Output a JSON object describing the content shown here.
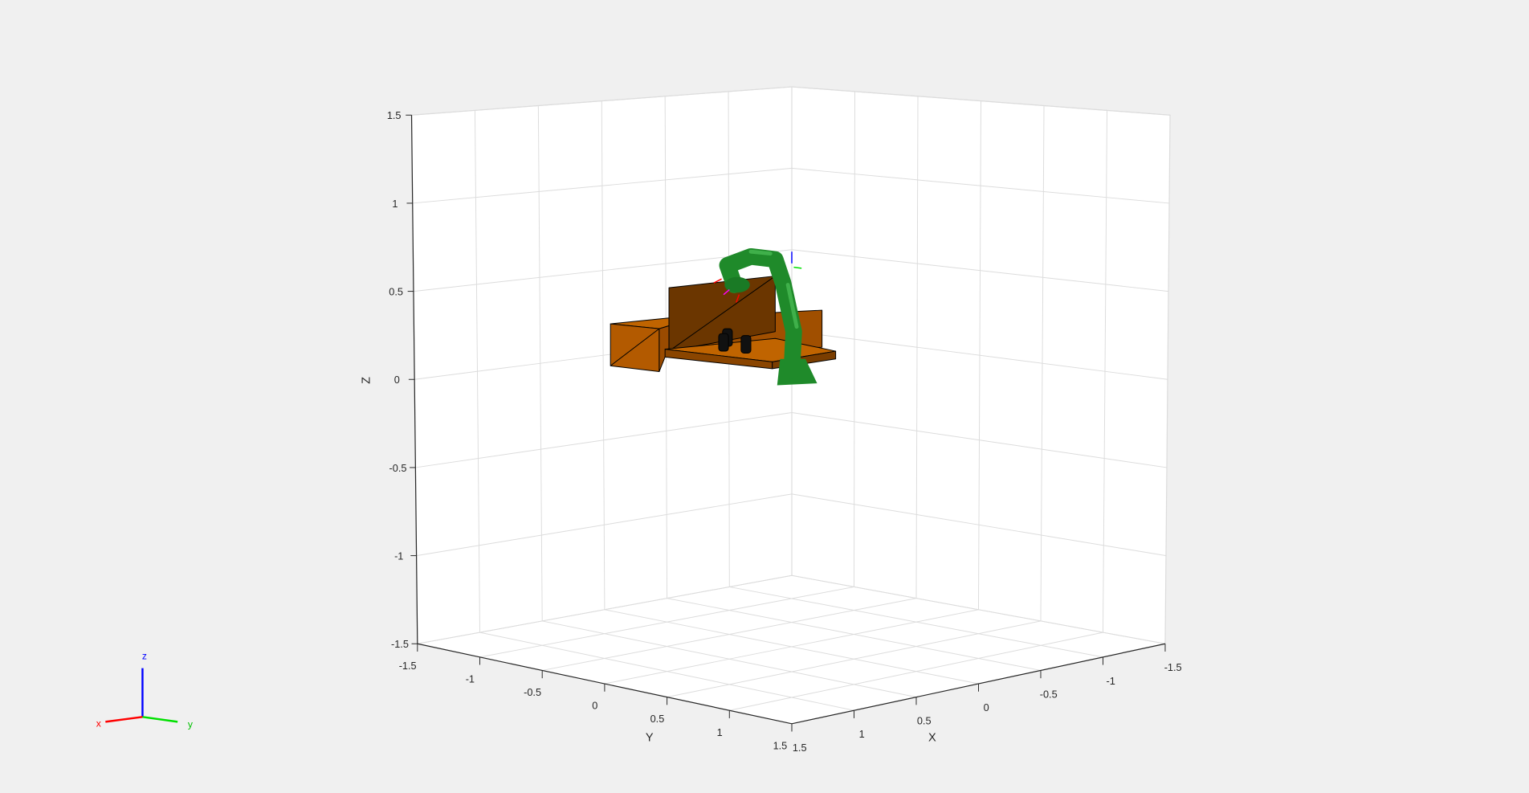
{
  "figure": {
    "background": "#f0f0f0",
    "axes_background": "#ffffff",
    "grid": true,
    "grid_color": "#dcdcdc",
    "axis_color": "#262626"
  },
  "axes": {
    "x": {
      "label": "X",
      "ticks": [
        1.5,
        1,
        0.5,
        0,
        -0.5,
        -1,
        -1.5
      ],
      "tick_labels": [
        "1.5",
        "1",
        "0.5",
        "0",
        "-0.5",
        "-1",
        "-1.5"
      ]
    },
    "y": {
      "label": "Y",
      "ticks": [
        -1.5,
        -1,
        -0.5,
        0,
        0.5,
        1,
        1.5
      ],
      "tick_labels": [
        "-1.5",
        "-1",
        "-0.5",
        "0",
        "0.5",
        "1",
        "1.5"
      ]
    },
    "z": {
      "label": "Z",
      "ticks": [
        1.5,
        1,
        0.5,
        0,
        -0.5,
        -1,
        -1.5
      ],
      "tick_labels": [
        "1.5",
        "1",
        "0.5",
        "0",
        "-0.5",
        "-1",
        "-1.5"
      ]
    }
  },
  "scene": {
    "table_color": "#b35a00",
    "panel_color": "#6b3600",
    "robot_color": "#1f8a2a",
    "object_color": "#111111"
  },
  "orientation_triad": {
    "x_label": "x",
    "y_label": "y",
    "z_label": "z",
    "x_color": "#ff0000",
    "y_color": "#00e000",
    "z_color": "#0000ff"
  }
}
